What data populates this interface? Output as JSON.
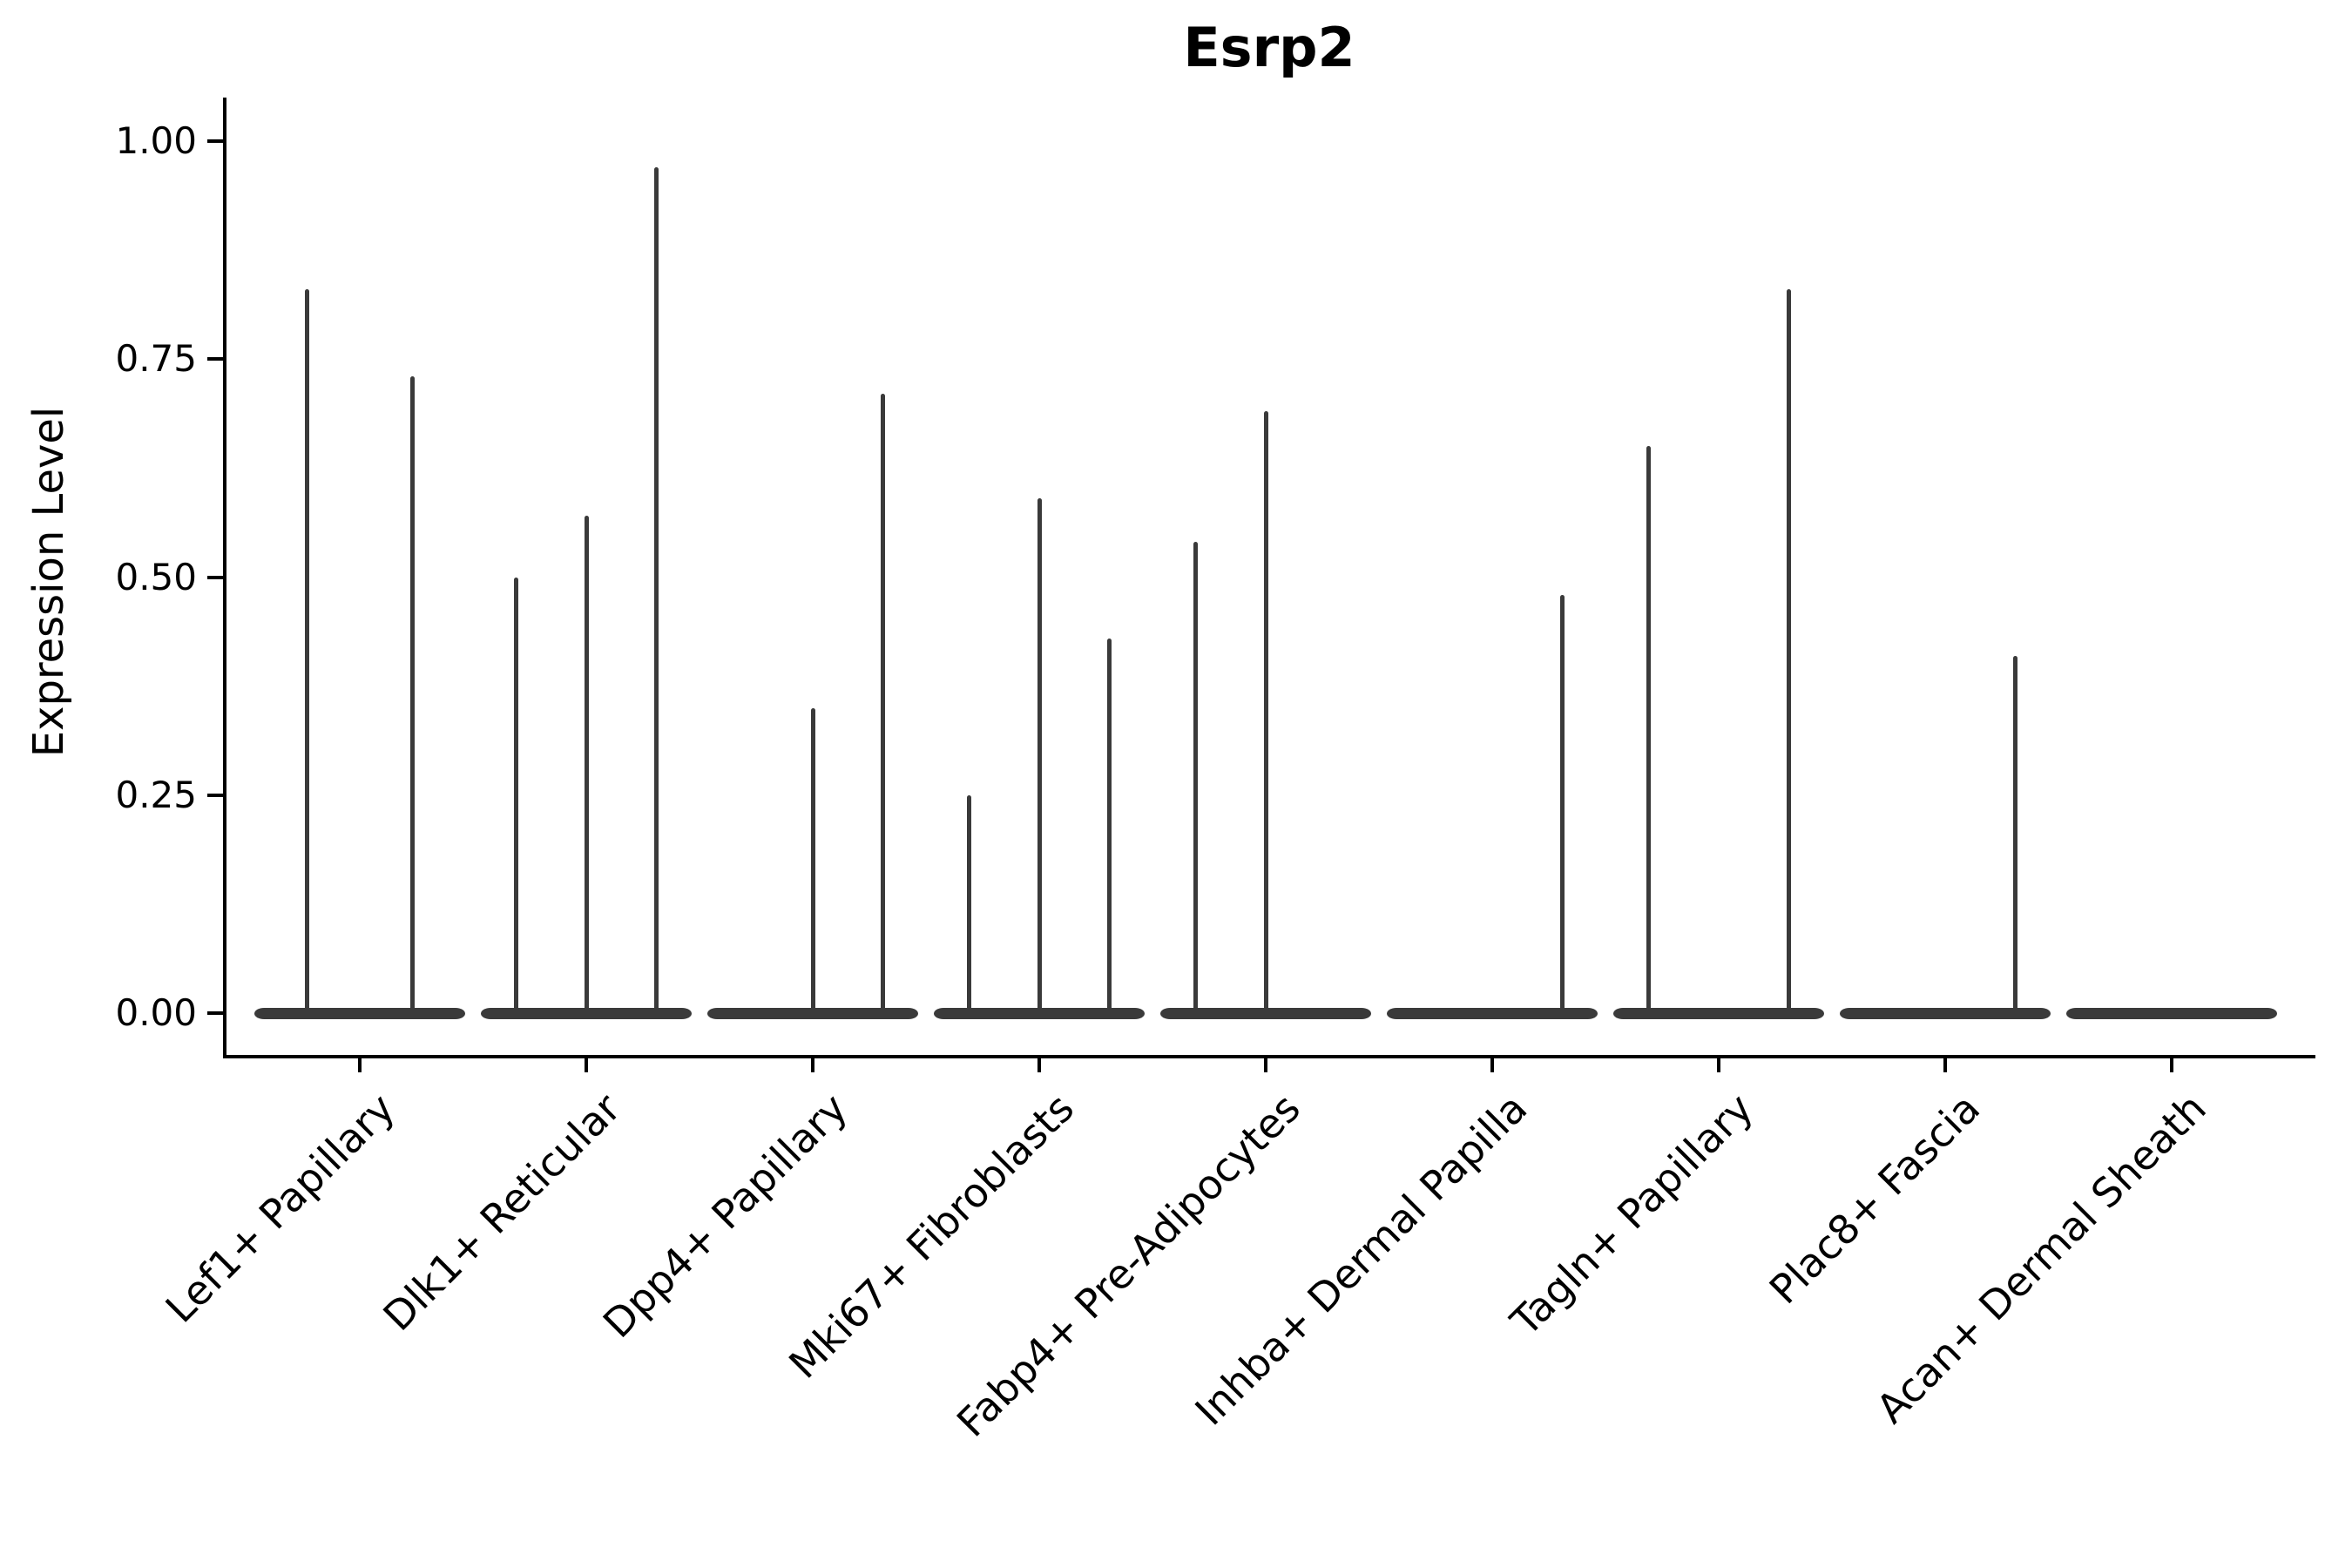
{
  "title": "Esrp2",
  "y_axis": {
    "label": "Expression Level",
    "tick_labels": [
      "1.00",
      "0.75",
      "0.50",
      "0.25",
      "0.00"
    ],
    "tick_values": [
      1.0,
      0.75,
      0.5,
      0.25,
      0.0
    ]
  },
  "x_axis": {
    "categories": [
      "Lef1+ Papillary",
      "Dlk1+ Reticular",
      "Dpp4+ Papillary",
      "Mki67+ Fibroblasts",
      "Fabp4+ Pre-Adipocytes",
      "Inhba+ Dermal Papilla",
      "Tagln+ Papillary",
      "Plac8+ Fascia",
      "Acan+ Dermal Sheath"
    ]
  },
  "colors": {
    "violin": "#3a3a3a",
    "axis": "#000000",
    "text": "#000000",
    "background": "#ffffff"
  },
  "chart_data": {
    "type": "violin",
    "title": "Esrp2",
    "xlabel": "",
    "ylabel": "Expression Level",
    "ylim": [
      0,
      1
    ],
    "yticks": [
      0.0,
      0.25,
      0.5,
      0.75,
      1.0
    ],
    "grid": false,
    "legend": "none",
    "categories": [
      "Lef1+ Papillary",
      "Dlk1+ Reticular",
      "Dpp4+ Papillary",
      "Mki67+ Fibroblasts",
      "Fabp4+ Pre-Adipocytes",
      "Inhba+ Dermal Papilla",
      "Tagln+ Papillary",
      "Plac8+ Fascia",
      "Acan+ Dermal Sheath"
    ],
    "violins": [
      {
        "category": "Lef1+ Papillary",
        "slots": 2,
        "spikes": [
          {
            "slot": 0,
            "max": 0.83
          },
          {
            "slot": 1,
            "max": 0.73
          }
        ]
      },
      {
        "category": "Dlk1+ Reticular",
        "slots": 3,
        "spikes": [
          {
            "slot": 0,
            "max": 0.5
          },
          {
            "slot": 1,
            "max": 0.57
          },
          {
            "slot": 2,
            "max": 0.97
          }
        ]
      },
      {
        "category": "Dpp4+ Papillary",
        "slots": 3,
        "spikes": [
          {
            "slot": 1,
            "max": 0.35
          },
          {
            "slot": 2,
            "max": 0.71
          }
        ]
      },
      {
        "category": "Mki67+ Fibroblasts",
        "slots": 3,
        "spikes": [
          {
            "slot": 0,
            "max": 0.25
          },
          {
            "slot": 1,
            "max": 0.59
          },
          {
            "slot": 2,
            "max": 0.43
          }
        ]
      },
      {
        "category": "Fabp4+ Pre-Adipocytes",
        "slots": 3,
        "spikes": [
          {
            "slot": 0,
            "max": 0.54
          },
          {
            "slot": 1,
            "max": 0.69
          }
        ]
      },
      {
        "category": "Inhba+ Dermal Papilla",
        "slots": 3,
        "spikes": [
          {
            "slot": 2,
            "max": 0.48
          }
        ]
      },
      {
        "category": "Tagln+ Papillary",
        "slots": 3,
        "spikes": [
          {
            "slot": 0,
            "max": 0.65
          },
          {
            "slot": 2,
            "max": 0.83
          }
        ]
      },
      {
        "category": "Plac8+ Fascia",
        "slots": 3,
        "spikes": [
          {
            "slot": 2,
            "max": 0.41
          }
        ]
      },
      {
        "category": "Acan+ Dermal Sheath",
        "slots": 3,
        "spikes": []
      }
    ],
    "baseline_value": 0.0
  }
}
